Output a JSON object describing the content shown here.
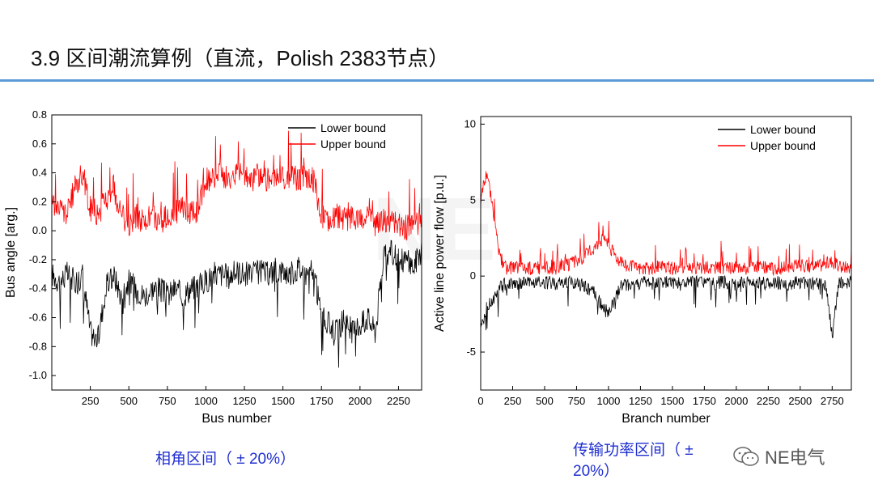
{
  "header": {
    "title": "3.9 区间潮流算例（直流，Polish 2383节点）"
  },
  "captions": {
    "left": "相角区间（ ± 20%）",
    "right": "传输功率区间（ ± 20%）"
  },
  "watermark": {
    "text": "NE电气"
  },
  "colors": {
    "lower": "#000000",
    "upper": "#ff0000",
    "rule": "#5b9bd5",
    "caption": "#1f2fd0"
  },
  "chart_data": [
    {
      "type": "line",
      "xlabel": "Bus  number",
      "ylabel": "Bus angle [arg.]",
      "xlim": [
        0,
        2400
      ],
      "ylim": [
        -1.1,
        0.8
      ],
      "xticks": [
        250,
        500,
        750,
        1000,
        1250,
        1500,
        1750,
        2000,
        2250
      ],
      "yticks": [
        0.8,
        0.6,
        0.4,
        0.2,
        0.0,
        -0.2,
        -0.4,
        -0.6,
        -0.8,
        -1.0
      ],
      "ytick_labels": [
        "0.8",
        "0.6",
        "0.4",
        "0.2",
        "0.0",
        "-0.2",
        "-0.4",
        "-0.6",
        "-0.8",
        "-1.0"
      ],
      "legend": {
        "position": "top-right",
        "entries": [
          "Lower bound",
          "Upper bound"
        ]
      },
      "series": [
        {
          "name": "Lower bound",
          "color": "#000000",
          "x": [
            0,
            50,
            100,
            150,
            200,
            250,
            300,
            350,
            400,
            450,
            500,
            550,
            600,
            650,
            700,
            750,
            800,
            850,
            900,
            950,
            1000,
            1050,
            1100,
            1150,
            1200,
            1250,
            1300,
            1350,
            1400,
            1450,
            1500,
            1550,
            1600,
            1650,
            1700,
            1750,
            1800,
            1850,
            1900,
            1950,
            2000,
            2050,
            2100,
            2150,
            2200,
            2250,
            2300,
            2350,
            2383
          ],
          "y": [
            -0.3,
            -0.35,
            -0.3,
            -0.35,
            -0.3,
            -0.7,
            -0.75,
            -0.4,
            -0.3,
            -0.45,
            -0.35,
            -0.4,
            -0.45,
            -0.4,
            -0.4,
            -0.45,
            -0.4,
            -0.45,
            -0.4,
            -0.38,
            -0.35,
            -0.3,
            -0.3,
            -0.32,
            -0.28,
            -0.3,
            -0.3,
            -0.28,
            -0.3,
            -0.27,
            -0.28,
            -0.3,
            -0.25,
            -0.3,
            -0.28,
            -0.6,
            -0.65,
            -0.7,
            -0.6,
            -0.7,
            -0.65,
            -0.6,
            -0.7,
            -0.2,
            -0.15,
            -0.2,
            -0.2,
            -0.25,
            -0.15
          ]
        },
        {
          "name": "Upper bound",
          "color": "#ff0000",
          "x": [
            0,
            50,
            100,
            150,
            200,
            250,
            300,
            350,
            400,
            450,
            500,
            550,
            600,
            650,
            700,
            750,
            800,
            850,
            900,
            950,
            1000,
            1050,
            1100,
            1150,
            1200,
            1250,
            1300,
            1350,
            1400,
            1450,
            1500,
            1550,
            1600,
            1650,
            1700,
            1750,
            1800,
            1850,
            1900,
            1950,
            2000,
            2050,
            2100,
            2150,
            2200,
            2250,
            2300,
            2350,
            2383
          ],
          "y": [
            0.2,
            0.15,
            0.12,
            0.3,
            0.4,
            0.15,
            0.12,
            0.2,
            0.3,
            0.1,
            0.05,
            0.1,
            0.05,
            0.1,
            0.05,
            0.1,
            0.12,
            0.15,
            0.12,
            0.15,
            0.35,
            0.35,
            0.4,
            0.35,
            0.4,
            0.38,
            0.35,
            0.4,
            0.35,
            0.38,
            0.35,
            0.38,
            0.35,
            0.38,
            0.35,
            0.1,
            0.05,
            0.1,
            0.08,
            0.1,
            0.08,
            0.1,
            0.05,
            0.08,
            0.05,
            0.05,
            0.02,
            0.05,
            0.05
          ]
        }
      ]
    },
    {
      "type": "line",
      "xlabel": "Branch number",
      "ylabel": "Active line power flow [p.u.]",
      "xlim": [
        0,
        2900
      ],
      "ylim": [
        -7.5,
        10.5
      ],
      "xticks": [
        0,
        250,
        500,
        750,
        1000,
        1250,
        1500,
        1750,
        2000,
        2250,
        2500,
        2750
      ],
      "yticks": [
        10,
        5,
        0,
        -5
      ],
      "ytick_labels": [
        "10",
        "5",
        "0",
        "-5"
      ],
      "legend": {
        "position": "top-right",
        "entries": [
          "Lower bound",
          "Upper bound"
        ]
      },
      "series": [
        {
          "name": "Lower bound",
          "color": "#000000",
          "x": [
            0,
            50,
            100,
            150,
            200,
            300,
            400,
            500,
            600,
            700,
            800,
            900,
            950,
            1000,
            1050,
            1100,
            1200,
            1300,
            1400,
            1500,
            1600,
            1700,
            1800,
            1900,
            2000,
            2100,
            2200,
            2300,
            2400,
            2500,
            2600,
            2700,
            2750,
            2800,
            2896
          ],
          "y": [
            -3,
            -2,
            -1.5,
            -0.8,
            -0.5,
            -0.4,
            -0.5,
            -0.4,
            -0.5,
            -0.4,
            -0.6,
            -1.2,
            -2,
            -2.5,
            -1.5,
            -0.6,
            -0.5,
            -0.4,
            -0.5,
            -0.4,
            -0.5,
            -0.4,
            -0.5,
            -0.4,
            -0.5,
            -0.4,
            -0.5,
            -0.4,
            -0.5,
            -0.4,
            -0.5,
            -0.6,
            -4,
            -0.5,
            -0.4
          ]
        },
        {
          "name": "Upper bound",
          "color": "#ff0000",
          "x": [
            0,
            50,
            100,
            150,
            200,
            300,
            400,
            500,
            600,
            700,
            800,
            900,
            950,
            1000,
            1050,
            1100,
            1200,
            1300,
            1400,
            1500,
            1600,
            1700,
            1800,
            1900,
            2000,
            2100,
            2200,
            2300,
            2400,
            2500,
            2600,
            2700,
            2750,
            2800,
            2896
          ],
          "y": [
            5,
            7,
            4,
            1.2,
            0.5,
            0.6,
            0.5,
            0.6,
            0.5,
            0.8,
            1.2,
            2,
            2.5,
            2,
            1.5,
            0.8,
            0.6,
            0.5,
            0.6,
            0.5,
            0.6,
            0.5,
            0.6,
            0.5,
            0.6,
            0.5,
            0.6,
            0.5,
            0.6,
            0.7,
            0.6,
            0.8,
            1,
            0.6,
            0.6
          ]
        }
      ]
    }
  ]
}
